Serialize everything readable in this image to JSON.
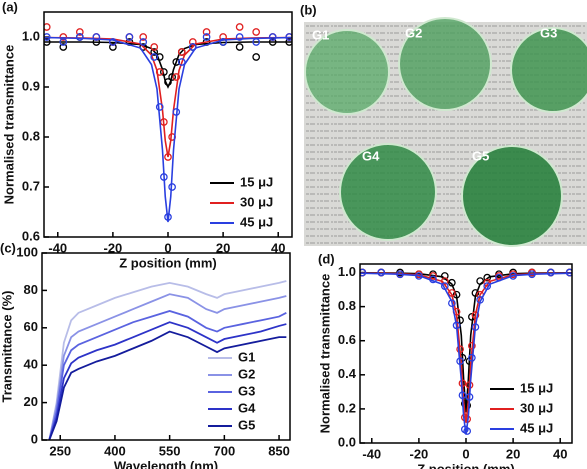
{
  "chart_data": [
    {
      "type": "scatter",
      "panel_label": "(a)",
      "x_label": "Z position (mm)",
      "y_label": "Normalised transmittance",
      "xlim": [
        -45,
        45
      ],
      "xticks": [
        -40,
        -20,
        0,
        20,
        40
      ],
      "ylim": [
        0.6,
        1.05
      ],
      "yticks": [
        0.6,
        0.7,
        0.8,
        0.9,
        {
          "value": 1,
          "label": "1.0"
        }
      ],
      "legend": "lower right",
      "series": [
        {
          "name": "15 μJ",
          "color": "#000000",
          "x": [
            -44,
            -38,
            -32,
            -26,
            -20,
            -14,
            -9,
            -5,
            -3,
            -1.5,
            0,
            1.5,
            3,
            5,
            9,
            14,
            20,
            26,
            32,
            38,
            44
          ],
          "values": [
            0.99,
            0.98,
            1.0,
            0.99,
            0.98,
            0.99,
            0.98,
            0.97,
            0.96,
            0.93,
            0.91,
            0.92,
            0.95,
            0.97,
            0.98,
            0.99,
            0.99,
            0.98,
            0.96,
            0.99,
            0.99
          ],
          "fit_x": [
            -45,
            -30,
            -20,
            -10,
            -6,
            -4,
            -2,
            -1,
            0,
            1,
            2,
            4,
            6,
            10,
            20,
            30,
            45
          ],
          "fit_values": [
            0.99,
            0.99,
            0.989,
            0.985,
            0.977,
            0.965,
            0.935,
            0.912,
            0.9,
            0.912,
            0.935,
            0.965,
            0.977,
            0.985,
            0.989,
            0.99,
            0.99
          ]
        },
        {
          "name": "30 μJ",
          "color": "#e02020",
          "x": [
            -44,
            -38,
            -32,
            -26,
            -20,
            -14,
            -9,
            -5,
            -3,
            -1.5,
            0,
            1.5,
            3,
            5,
            9,
            14,
            20,
            26,
            32,
            38,
            44
          ],
          "values": [
            1.02,
            1.0,
            1.01,
            1.0,
            0.99,
            1.0,
            1.0,
            0.98,
            0.93,
            0.83,
            0.76,
            0.8,
            0.92,
            0.97,
            0.99,
            1.01,
            1.0,
            1.02,
            1.01,
            1.0,
            1.0
          ],
          "fit_x": [
            -45,
            -30,
            -20,
            -10,
            -6,
            -4,
            -2,
            -1,
            0,
            1,
            2,
            4,
            6,
            10,
            20,
            30,
            45
          ],
          "fit_values": [
            0.999,
            0.998,
            0.996,
            0.986,
            0.964,
            0.933,
            0.854,
            0.793,
            0.76,
            0.793,
            0.854,
            0.933,
            0.964,
            0.986,
            0.996,
            0.998,
            0.999
          ]
        },
        {
          "name": "45 μJ",
          "color": "#2a3fe0",
          "x": [
            -44,
            -38,
            -32,
            -26,
            -20,
            -14,
            -9,
            -5,
            -3,
            -1.5,
            0,
            1.5,
            3,
            5,
            9,
            14,
            20,
            26,
            32,
            38,
            44
          ],
          "values": [
            1.0,
            0.99,
            1.0,
            1.0,
            0.99,
            1.0,
            0.99,
            0.96,
            0.86,
            0.72,
            0.64,
            0.7,
            0.85,
            0.95,
            0.98,
            1.0,
            0.99,
            1.0,
            0.99,
            1.0,
            1.0
          ],
          "fit_x": [
            -45,
            -30,
            -20,
            -10,
            -6,
            -4,
            -2,
            -1,
            0,
            1,
            2,
            4,
            6,
            10,
            20,
            30,
            45
          ],
          "fit_values": [
            0.999,
            0.997,
            0.994,
            0.978,
            0.945,
            0.896,
            0.774,
            0.681,
            0.63,
            0.681,
            0.774,
            0.896,
            0.945,
            0.978,
            0.994,
            0.997,
            0.999
          ]
        }
      ]
    },
    {
      "type": "line",
      "panel_label": "(c)",
      "x_label": "Wavelength (nm)",
      "y_label": "Transmittance (%)",
      "xlim": [
        200,
        880
      ],
      "xticks": [
        250,
        400,
        550,
        700,
        850
      ],
      "ylim": [
        0,
        100
      ],
      "yticks": [
        0,
        20,
        40,
        60,
        80,
        100
      ],
      "legend": "lower right",
      "x": [
        220,
        240,
        260,
        280,
        300,
        350,
        400,
        450,
        500,
        550,
        600,
        650,
        680,
        700,
        750,
        800,
        850,
        870
      ],
      "series": [
        {
          "name": "G1",
          "color": "#b8bde8",
          "values": [
            0,
            20,
            52,
            64,
            68,
            72,
            76,
            79,
            82,
            84,
            82,
            78,
            76,
            78,
            80,
            82,
            84,
            85
          ]
        },
        {
          "name": "G2",
          "color": "#8a92e6",
          "values": [
            0,
            18,
            45,
            55,
            58,
            62,
            66,
            70,
            74,
            78,
            76,
            70,
            68,
            70,
            72,
            74,
            76,
            77
          ]
        },
        {
          "name": "G3",
          "color": "#5a63e0",
          "values": [
            0,
            15,
            40,
            48,
            51,
            55,
            59,
            63,
            66,
            69,
            66,
            60,
            58,
            60,
            62,
            64,
            66,
            68
          ]
        },
        {
          "name": "G4",
          "color": "#2d33c8",
          "values": [
            0,
            12,
            33,
            41,
            44,
            48,
            51,
            55,
            59,
            63,
            60,
            55,
            52,
            54,
            56,
            58,
            61,
            62
          ]
        },
        {
          "name": "G5",
          "color": "#141c9c",
          "values": [
            0,
            10,
            28,
            36,
            38,
            42,
            45,
            49,
            53,
            58,
            55,
            50,
            47,
            49,
            51,
            53,
            55,
            55
          ]
        }
      ]
    },
    {
      "type": "scatter",
      "panel_label": "(d)",
      "x_label": "Z position (mm)",
      "y_label": "Normalised transmittance",
      "xlim": [
        -45,
        45
      ],
      "xticks": [
        -40,
        -20,
        0,
        20,
        40
      ],
      "ylim": [
        0,
        1.05
      ],
      "yticks": [
        {
          "value": 0,
          "label": "0.0"
        },
        0.2,
        0.4,
        0.6,
        0.8,
        {
          "value": 1,
          "label": "1.0"
        }
      ],
      "legend": "lower right",
      "series": [
        {
          "name": "15 μJ",
          "color": "#000000",
          "x": [
            -44,
            -36,
            -28,
            -20,
            -14,
            -9,
            -6,
            -4,
            -2.5,
            -1.5,
            -0.5,
            0.5,
            1.5,
            2.5,
            4,
            6,
            9,
            14,
            20,
            28,
            36,
            44
          ],
          "values": [
            1.0,
            1.0,
            1.0,
            0.99,
            0.99,
            0.98,
            0.94,
            0.87,
            0.72,
            0.5,
            0.23,
            0.22,
            0.48,
            0.74,
            0.88,
            0.95,
            0.97,
            0.99,
            1.0,
            1.0,
            1.0,
            1.0
          ],
          "fit_x": [
            -45,
            -30,
            -20,
            -10,
            -6,
            -4,
            -2,
            -1,
            0,
            1,
            2,
            4,
            6,
            10,
            20,
            30,
            45
          ],
          "fit_values": [
            0.998,
            0.997,
            0.993,
            0.975,
            0.932,
            0.862,
            0.632,
            0.374,
            0.18,
            0.374,
            0.632,
            0.862,
            0.932,
            0.975,
            0.993,
            0.997,
            0.998
          ]
        },
        {
          "name": "30 μJ",
          "color": "#e02020",
          "x": [
            -44,
            -36,
            -28,
            -20,
            -14,
            -9,
            -6,
            -4,
            -2.5,
            -1.5,
            -0.5,
            0.5,
            1.5,
            2.5,
            4,
            6,
            9,
            14,
            20,
            28,
            36,
            44
          ],
          "values": [
            1.0,
            1.0,
            0.99,
            0.99,
            0.98,
            0.95,
            0.88,
            0.77,
            0.55,
            0.35,
            0.15,
            0.14,
            0.34,
            0.57,
            0.75,
            0.87,
            0.94,
            0.98,
            0.99,
            1.0,
            1.0,
            1.0
          ],
          "fit_x": [
            -45,
            -30,
            -20,
            -10,
            -6,
            -4,
            -2,
            -1,
            0,
            1,
            2,
            4,
            6,
            10,
            20,
            30,
            45
          ],
          "fit_values": [
            0.997,
            0.994,
            0.987,
            0.948,
            0.87,
            0.753,
            0.463,
            0.241,
            0.12,
            0.241,
            0.463,
            0.753,
            0.87,
            0.948,
            0.987,
            0.994,
            0.997
          ]
        },
        {
          "name": "45 μJ",
          "color": "#2a3fe0",
          "x": [
            -44,
            -36,
            -28,
            -20,
            -14,
            -9,
            -6,
            -4,
            -2.5,
            -1.5,
            -0.5,
            0.5,
            1.5,
            2.5,
            4,
            6,
            9,
            14,
            20,
            28,
            36,
            44
          ],
          "values": [
            1.0,
            1.0,
            0.99,
            0.98,
            0.96,
            0.92,
            0.82,
            0.69,
            0.48,
            0.28,
            0.08,
            0.07,
            0.27,
            0.5,
            0.68,
            0.84,
            0.92,
            0.97,
            0.98,
            0.99,
            1.0,
            1.0
          ],
          "fit_x": [
            -45,
            -30,
            -20,
            -10,
            -6,
            -4,
            -2,
            -1,
            0,
            1,
            2,
            4,
            6,
            10,
            20,
            30,
            45
          ],
          "fit_values": [
            0.996,
            0.991,
            0.982,
            0.931,
            0.83,
            0.687,
            0.371,
            0.157,
            0.05,
            0.157,
            0.371,
            0.687,
            0.83,
            0.931,
            0.982,
            0.991,
            0.996
          ]
        }
      ]
    }
  ],
  "photo": {
    "panel_label": "(b)",
    "samples": [
      "G1",
      "G2",
      "G3",
      "G4",
      "G5"
    ]
  }
}
